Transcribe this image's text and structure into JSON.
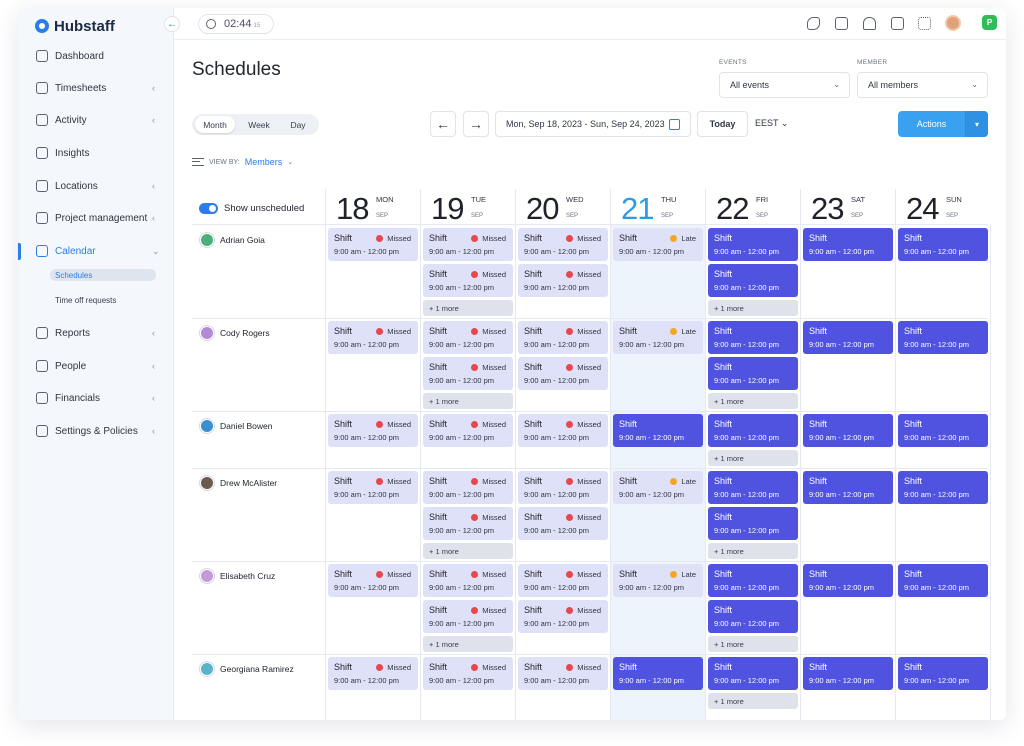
{
  "app": {
    "name": "Hubstaff"
  },
  "sidebar": {
    "items": [
      {
        "key": "dashboard",
        "label": "Dashboard",
        "icon": "dashboard-icon",
        "chevron": false
      },
      {
        "key": "timesheets",
        "label": "Timesheets",
        "icon": "clock-icon",
        "chevron": true
      },
      {
        "key": "activity",
        "label": "Activity",
        "icon": "activity-chart-icon",
        "chevron": true
      },
      {
        "key": "insights",
        "label": "Insights",
        "icon": "lightbulb-icon",
        "chevron": false
      },
      {
        "key": "locations",
        "label": "Locations",
        "icon": "map-icon",
        "chevron": true
      },
      {
        "key": "project-management",
        "label": "Project management",
        "icon": "checkbox-icon",
        "chevron": true
      },
      {
        "key": "calendar",
        "label": "Calendar",
        "icon": "calendar-icon",
        "chevron": true
      },
      {
        "key": "reports",
        "label": "Reports",
        "icon": "report-icon",
        "chevron": true
      },
      {
        "key": "people",
        "label": "People",
        "icon": "people-icon",
        "chevron": true
      },
      {
        "key": "financials",
        "label": "Financials",
        "icon": "dollar-icon",
        "chevron": true
      },
      {
        "key": "settings-policies",
        "label": "Settings & Policies",
        "icon": "sliders-icon",
        "chevron": true
      }
    ],
    "calendar_sub": [
      {
        "key": "schedules",
        "label": "Schedules",
        "active": true
      },
      {
        "key": "time-off-requests",
        "label": "Time off requests",
        "active": false
      }
    ]
  },
  "topbar": {
    "timer": "02:44",
    "timer_seconds": "15",
    "org_initial": "P"
  },
  "page": {
    "title": "Schedules"
  },
  "filters": {
    "events_label": "EVENTS",
    "events_value": "All events",
    "member_label": "MEMBER",
    "member_value": "All members"
  },
  "view_toggle": [
    "Month",
    "Week",
    "Day"
  ],
  "view_selected": "Month",
  "date_range": "Mon, Sep 18, 2023 - Sun, Sep 24, 2023",
  "today_label": "Today",
  "timezone": "EEST",
  "actions_label": "Actions",
  "view_by": {
    "label": "VIEW BY:",
    "value": "Members"
  },
  "calendar": {
    "toggle_label": "Show unscheduled",
    "days": [
      {
        "num": "18",
        "dow": "MON",
        "mon": "SEP"
      },
      {
        "num": "19",
        "dow": "TUE",
        "mon": "SEP"
      },
      {
        "num": "20",
        "dow": "WED",
        "mon": "SEP"
      },
      {
        "num": "21",
        "dow": "THU",
        "mon": "SEP",
        "today": true
      },
      {
        "num": "22",
        "dow": "FRI",
        "mon": "SEP"
      },
      {
        "num": "23",
        "dow": "SAT",
        "mon": "SEP"
      },
      {
        "num": "24",
        "dow": "SUN",
        "mon": "SEP"
      }
    ],
    "shift_label": "Shift",
    "shift_time": "9:00 am - 12:00 pm",
    "more_label": "+ 1 more",
    "status_colors": {
      "Missed": "#e5484d",
      "Late": "#f5a524"
    },
    "members": [
      {
        "name": "Adrian Goia",
        "avatar_color": "#4caf7a",
        "days": [
          [
            "Missed"
          ],
          [
            "Missed",
            "Missed",
            "more"
          ],
          [
            "Missed",
            "Missed"
          ],
          [
            "Late"
          ],
          [
            "",
            "",
            "more"
          ],
          [
            ""
          ],
          [
            ""
          ]
        ]
      },
      {
        "name": "Cody Rogers",
        "avatar_color": "#b48ad6",
        "days": [
          [
            "Missed"
          ],
          [
            "Missed",
            "Missed",
            "more"
          ],
          [
            "Missed",
            "Missed"
          ],
          [
            "Late"
          ],
          [
            "",
            "",
            "more"
          ],
          [
            ""
          ],
          [
            ""
          ]
        ]
      },
      {
        "name": "Daniel Bowen",
        "avatar_color": "#3a8fd0",
        "days": [
          [
            "Missed"
          ],
          [
            "Missed"
          ],
          [
            "Missed"
          ],
          [
            ""
          ],
          [
            "",
            "more"
          ],
          [
            ""
          ],
          [
            ""
          ]
        ]
      },
      {
        "name": "Drew McAlister",
        "avatar_color": "#6b5a4e",
        "days": [
          [
            "Missed"
          ],
          [
            "Missed",
            "Missed",
            "more"
          ],
          [
            "Missed",
            "Missed"
          ],
          [
            "Late"
          ],
          [
            "",
            "",
            "more"
          ],
          [
            ""
          ],
          [
            ""
          ]
        ]
      },
      {
        "name": "Elisabeth Cruz",
        "avatar_color": "#c49ad9",
        "days": [
          [
            "Missed"
          ],
          [
            "Missed",
            "Missed",
            "more"
          ],
          [
            "Missed",
            "Missed"
          ],
          [
            "Late"
          ],
          [
            "",
            "",
            "more"
          ],
          [
            ""
          ],
          [
            ""
          ]
        ]
      },
      {
        "name": "Georgiana Ramirez",
        "avatar_color": "#5ab3c9",
        "days": [
          [
            "Missed"
          ],
          [
            "Missed"
          ],
          [
            "Missed"
          ],
          [
            ""
          ],
          [
            "",
            "more"
          ],
          [
            ""
          ],
          [
            ""
          ]
        ]
      }
    ]
  }
}
